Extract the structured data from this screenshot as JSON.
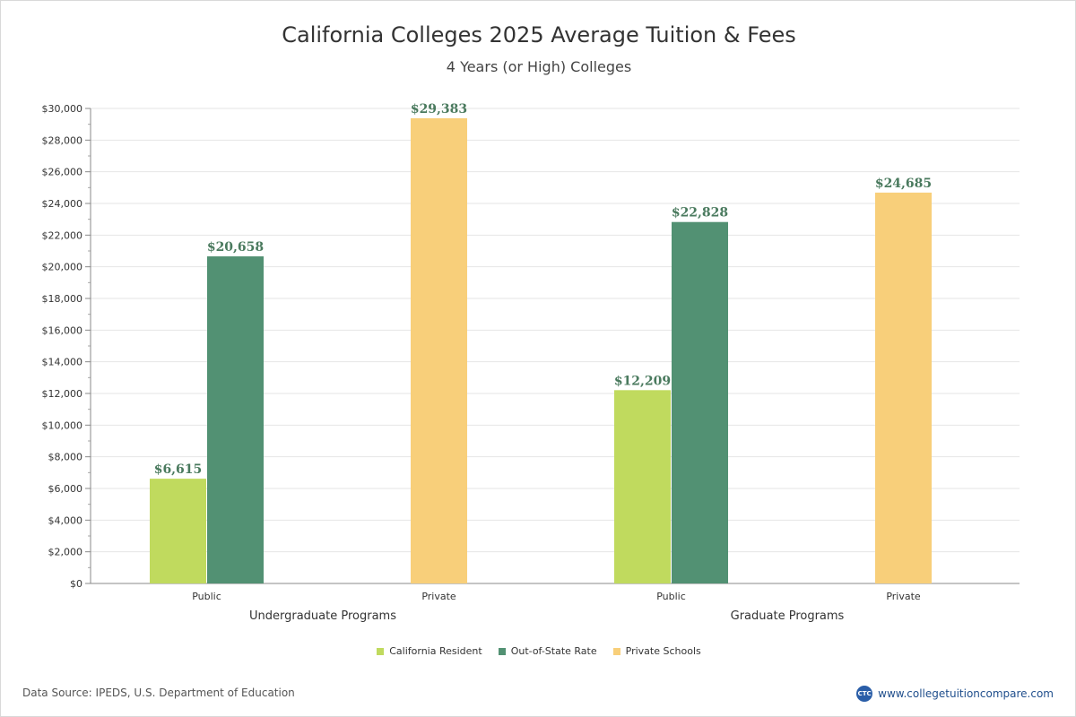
{
  "title": "California Colleges 2025 Average Tuition & Fees",
  "subtitle": "4 Years (or High)  Colleges",
  "source": "Data Source: IPEDS, U.S. Department of Education",
  "brand": {
    "logo_text": "CTC",
    "url_text": "www.collegetuitioncompare.com"
  },
  "chart_data": {
    "type": "bar",
    "title": "California Colleges 2025 Average Tuition & Fees",
    "subtitle": "4 Years (or High)  Colleges",
    "ylim": [
      0,
      30000
    ],
    "ytick_step": 2000,
    "ytick_labels": [
      "$0",
      "$2,000",
      "$4,000",
      "$6,000",
      "$8,000",
      "$10,000",
      "$12,000",
      "$14,000",
      "$16,000",
      "$18,000",
      "$20,000",
      "$22,000",
      "$24,000",
      "$26,000",
      "$28,000",
      "$30,000"
    ],
    "groups": [
      {
        "label": "Undergraduate Programs",
        "categories": [
          {
            "label": "Public",
            "bars": [
              {
                "series": "California Resident",
                "value": 6615,
                "label": "$6,615"
              },
              {
                "series": "Out-of-State Rate",
                "value": 20658,
                "label": "$20,658"
              }
            ]
          },
          {
            "label": "Private",
            "bars": [
              {
                "series": "Private Schools",
                "value": 29383,
                "label": "$29,383"
              }
            ]
          }
        ]
      },
      {
        "label": "Graduate Programs",
        "categories": [
          {
            "label": "Public",
            "bars": [
              {
                "series": "California Resident",
                "value": 12209,
                "label": "$12,209"
              },
              {
                "series": "Out-of-State Rate",
                "value": 22828,
                "label": "$22,828"
              }
            ]
          },
          {
            "label": "Private",
            "bars": [
              {
                "series": "Private Schools",
                "value": 24685,
                "label": "$24,685"
              }
            ]
          }
        ]
      }
    ],
    "series": [
      {
        "name": "California Resident",
        "color": "#c0da5e"
      },
      {
        "name": "Out-of-State Rate",
        "color": "#529173"
      },
      {
        "name": "Private Schools",
        "color": "#f8cf7a"
      }
    ],
    "legend_position": "bottom-center",
    "grid": true
  }
}
